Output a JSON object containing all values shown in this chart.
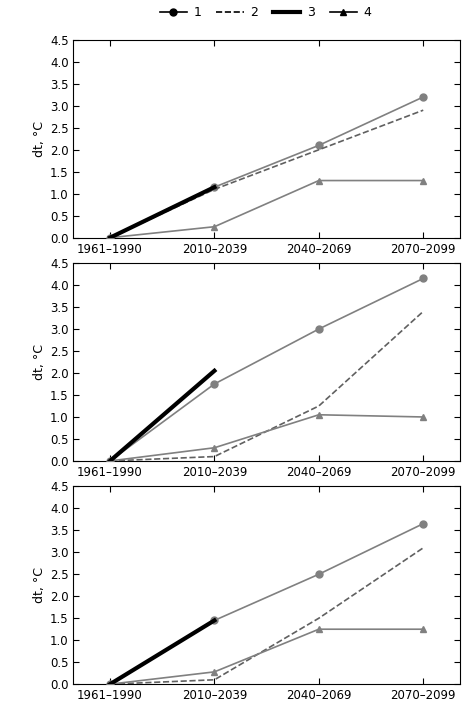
{
  "x_labels": [
    "1961–1990",
    "2010–2039",
    "2040–2069",
    "2070–2099"
  ],
  "x_positions": [
    0,
    1,
    2,
    3
  ],
  "panels": [
    {
      "series": [
        {
          "label": "1",
          "style": "solid",
          "marker": "o",
          "color": "#808080",
          "lw": 1.2,
          "ms": 5,
          "values": [
            0.0,
            1.15,
            2.1,
            3.2
          ]
        },
        {
          "label": "2",
          "style": "dashed",
          "marker": null,
          "color": "#606060",
          "lw": 1.2,
          "ms": 0,
          "values": [
            0.0,
            1.1,
            2.0,
            2.9
          ]
        },
        {
          "label": "3",
          "style": "solid",
          "marker": null,
          "color": "#000000",
          "lw": 3.0,
          "ms": 0,
          "values": [
            0.0,
            1.15,
            null,
            null
          ]
        },
        {
          "label": "4",
          "style": "solid",
          "marker": "^",
          "color": "#808080",
          "lw": 1.2,
          "ms": 5,
          "values": [
            0.0,
            0.25,
            1.3,
            1.3
          ]
        }
      ],
      "ylim": [
        0,
        4.5
      ],
      "yticks": [
        0.0,
        0.5,
        1.0,
        1.5,
        2.0,
        2.5,
        3.0,
        3.5,
        4.0,
        4.5
      ]
    },
    {
      "series": [
        {
          "label": "1",
          "style": "solid",
          "marker": "o",
          "color": "#808080",
          "lw": 1.2,
          "ms": 5,
          "values": [
            0.0,
            1.75,
            3.0,
            4.15
          ]
        },
        {
          "label": "2",
          "style": "dashed",
          "marker": null,
          "color": "#606060",
          "lw": 1.2,
          "ms": 0,
          "values": [
            0.0,
            0.1,
            1.25,
            3.4
          ]
        },
        {
          "label": "3",
          "style": "solid",
          "marker": null,
          "color": "#000000",
          "lw": 3.0,
          "ms": 0,
          "values": [
            0.0,
            2.05,
            null,
            null
          ]
        },
        {
          "label": "4",
          "style": "solid",
          "marker": "^",
          "color": "#808080",
          "lw": 1.2,
          "ms": 5,
          "values": [
            0.0,
            0.3,
            1.05,
            1.0
          ]
        }
      ],
      "ylim": [
        0,
        4.5
      ],
      "yticks": [
        0.0,
        0.5,
        1.0,
        1.5,
        2.0,
        2.5,
        3.0,
        3.5,
        4.0,
        4.5
      ]
    },
    {
      "series": [
        {
          "label": "1",
          "style": "solid",
          "marker": "o",
          "color": "#808080",
          "lw": 1.2,
          "ms": 5,
          "values": [
            0.0,
            1.45,
            2.5,
            3.65
          ]
        },
        {
          "label": "2",
          "style": "dashed",
          "marker": null,
          "color": "#606060",
          "lw": 1.2,
          "ms": 0,
          "values": [
            0.0,
            0.1,
            1.5,
            3.1
          ]
        },
        {
          "label": "3",
          "style": "solid",
          "marker": null,
          "color": "#000000",
          "lw": 3.0,
          "ms": 0,
          "values": [
            0.0,
            1.45,
            null,
            null
          ]
        },
        {
          "label": "4",
          "style": "solid",
          "marker": "^",
          "color": "#808080",
          "lw": 1.2,
          "ms": 5,
          "values": [
            0.0,
            0.28,
            1.25,
            1.25
          ]
        }
      ],
      "ylim": [
        0,
        4.5
      ],
      "yticks": [
        0.0,
        0.5,
        1.0,
        1.5,
        2.0,
        2.5,
        3.0,
        3.5,
        4.0,
        4.5
      ]
    }
  ],
  "ylabel": "dt, °C",
  "bg_color": "#ffffff",
  "legend_entries": [
    {
      "label": "1",
      "style": "solid",
      "marker": "o",
      "color": "#000000",
      "lw": 1.2,
      "ms": 5
    },
    {
      "label": "2",
      "style": "dashed",
      "marker": null,
      "color": "#000000",
      "lw": 1.2,
      "ms": 0
    },
    {
      "label": "3",
      "style": "solid",
      "marker": null,
      "color": "#000000",
      "lw": 3.0,
      "ms": 0
    },
    {
      "label": "4",
      "style": "solid",
      "marker": "^",
      "color": "#000000",
      "lw": 1.2,
      "ms": 5
    }
  ]
}
